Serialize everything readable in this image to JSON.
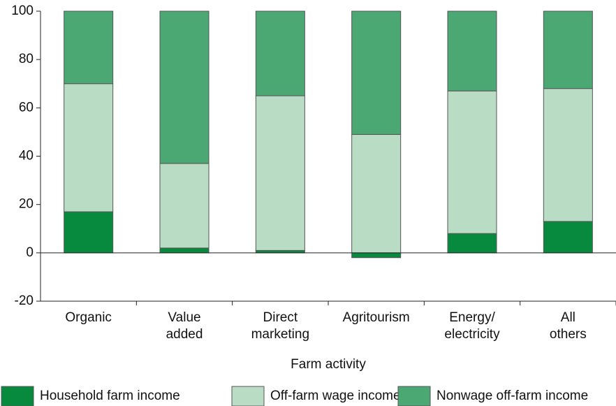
{
  "chart_data": {
    "type": "stacked_bar",
    "xlabel": "Farm activity",
    "categories": [
      "Organic",
      "Value\nadded",
      "Direct\nmarketing",
      "Agritourism",
      "Energy/\nelectricity",
      "All\nothers"
    ],
    "series": [
      {
        "name": "Household farm income",
        "color": "#078a3e",
        "values": [
          17,
          2,
          1,
          -2,
          8,
          13
        ]
      },
      {
        "name": "Off-farm wage income",
        "color": "#b9dcc4",
        "values": [
          53,
          35,
          64,
          49,
          59,
          55
        ]
      },
      {
        "name": "Nonwage off-farm income",
        "color": "#4ba872",
        "values": [
          30,
          63,
          35,
          51,
          33,
          32
        ]
      }
    ],
    "ylim": [
      -20,
      100
    ],
    "yticks": [
      -20,
      0,
      20,
      40,
      60,
      80,
      100
    ]
  }
}
